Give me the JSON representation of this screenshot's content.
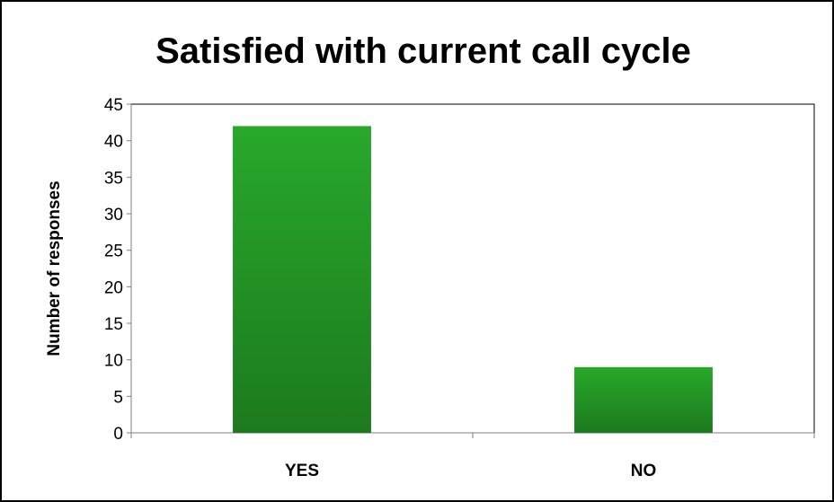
{
  "chart_data": {
    "type": "bar",
    "title": "Satisfied with current call cycle",
    "xlabel": "",
    "ylabel": "Number of responses",
    "categories": [
      "YES",
      "NO"
    ],
    "values": [
      42,
      9
    ],
    "ylim": [
      0,
      45
    ],
    "yticks": [
      0,
      5,
      10,
      15,
      20,
      25,
      30,
      35,
      40,
      45
    ],
    "grid": false,
    "legend": "none",
    "colors": {
      "bar_top": "#28a82a",
      "bar_bottom": "#1c7a1e",
      "axis": "#7f7f7f",
      "border": "#000000"
    }
  }
}
